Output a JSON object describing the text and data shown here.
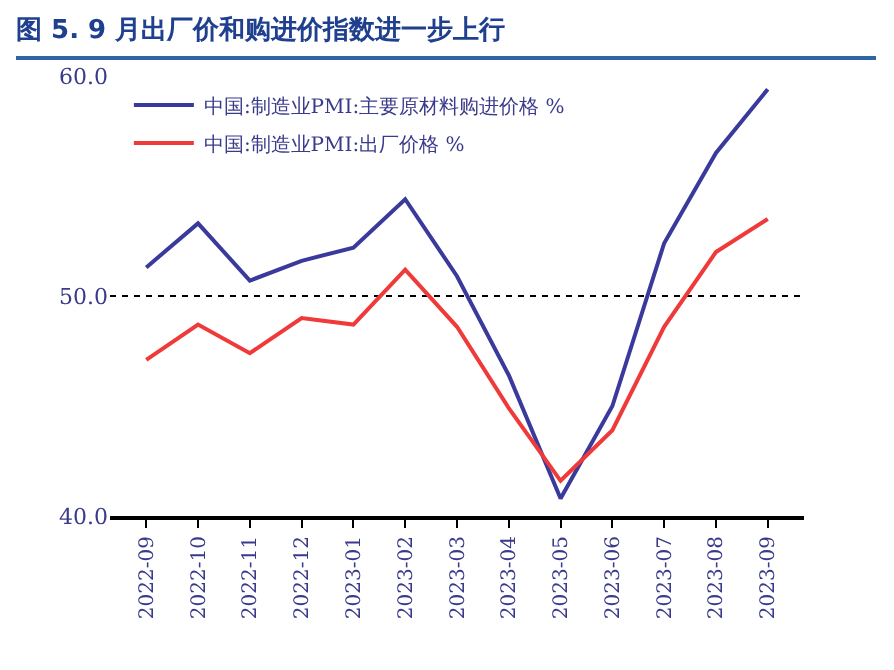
{
  "chart_data": {
    "type": "line",
    "title": "图 5. 9 月出厂价和购进价指数进一步上行",
    "categories": [
      "2022-09",
      "2022-10",
      "2022-11",
      "2022-12",
      "2023-01",
      "2023-02",
      "2023-03",
      "2023-04",
      "2023-05",
      "2023-06",
      "2023-07",
      "2023-08",
      "2023-09"
    ],
    "series": [
      {
        "name": "中国:制造业PMI:主要原材料购进价格 %",
        "color": "#3a3a9c",
        "values": [
          51.3,
          53.3,
          50.7,
          51.6,
          52.2,
          54.4,
          50.9,
          46.4,
          40.8,
          45.0,
          52.4,
          56.5,
          59.4
        ]
      },
      {
        "name": "中国:制造业PMI:出厂价格 %",
        "color": "#f03a3a",
        "values": [
          47.1,
          48.7,
          47.4,
          49.0,
          48.7,
          51.2,
          48.6,
          44.9,
          41.6,
          43.9,
          48.6,
          52.0,
          53.5
        ]
      }
    ],
    "ylim": [
      40,
      60
    ],
    "yticks": [
      {
        "value": 40,
        "label": "40.0"
      },
      {
        "value": 50,
        "label": "50.0"
      },
      {
        "value": 60,
        "label": "60.0"
      }
    ],
    "grid": "y",
    "legend": "top left",
    "marker": "none",
    "line_style": "solid"
  }
}
